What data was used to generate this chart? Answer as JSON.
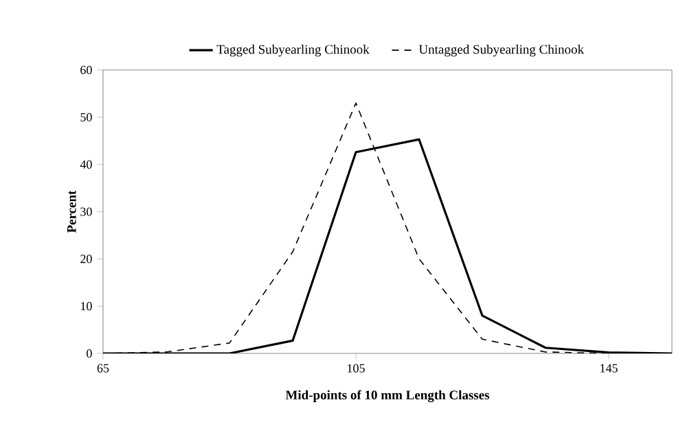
{
  "chart_data": {
    "type": "line",
    "xlabel": "Mid-points of 10 mm Length Classes",
    "ylabel": "Percent",
    "x": [
      65,
      75,
      85,
      95,
      105,
      115,
      125,
      135,
      145,
      155
    ],
    "series": [
      {
        "name": "Tagged Subyearling Chinook",
        "color": "#000000",
        "line_style": "solid",
        "values": [
          0,
          0,
          0,
          2.7,
          42.6,
          45.3,
          8.0,
          1.2,
          0.2,
          0
        ]
      },
      {
        "name": "Untagged Subyearling Chinook",
        "color": "#000000",
        "line_style": "dashed",
        "values": [
          0,
          0.3,
          2.2,
          21.5,
          53,
          20,
          3,
          0.3,
          0,
          0
        ]
      }
    ],
    "xlim": [
      65,
      155
    ],
    "xticks": [
      65,
      105,
      145
    ],
    "ylim": [
      0,
      60
    ],
    "yticks": [
      0,
      10,
      20,
      30,
      40,
      50,
      60
    ],
    "grid": false,
    "legend": "top",
    "marker": "none"
  }
}
